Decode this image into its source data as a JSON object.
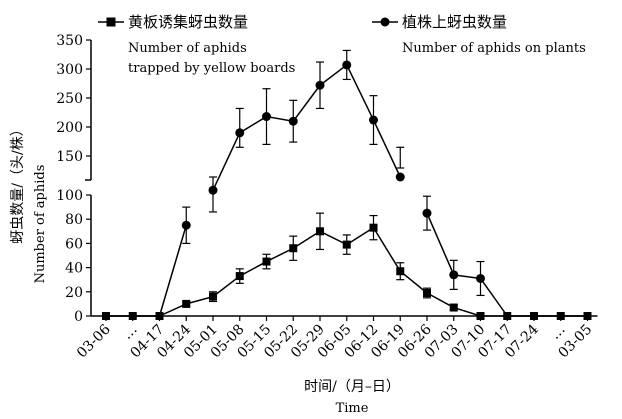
{
  "chart_data": {
    "type": "line",
    "categories": [
      "03-06",
      "…",
      "04-17",
      "04-24",
      "05-01",
      "05-08",
      "05-15",
      "05-22",
      "05-29",
      "06-05",
      "06-12",
      "06-19",
      "06-26",
      "07-03",
      "07-10",
      "07-17",
      "07-24",
      "…",
      "03-05"
    ],
    "series": [
      {
        "name": "黄板诱集蚜虫数量",
        "name_en": "Number of aphids trapped by yellow boards",
        "marker": "square",
        "values": [
          0,
          0,
          0,
          10,
          16,
          33,
          45,
          56,
          70,
          59,
          73,
          37,
          19,
          7,
          0,
          0,
          0,
          0,
          0
        ],
        "errors": [
          0,
          0,
          0,
          2,
          4,
          6,
          6,
          10,
          15,
          8,
          10,
          7,
          4,
          2,
          0,
          0,
          0,
          0,
          0
        ]
      },
      {
        "name": "植株上蚜虫数量",
        "name_en": "Number of aphids on plants",
        "marker": "circle",
        "values": [
          0,
          0,
          0,
          75,
          108,
          190,
          218,
          210,
          272,
          307,
          212,
          130,
          85,
          34,
          31,
          0,
          0,
          0,
          0
        ],
        "errors": [
          0,
          0,
          0,
          15,
          22,
          42,
          48,
          36,
          40,
          25,
          42,
          15,
          14,
          12,
          14,
          0,
          0,
          0,
          0
        ]
      }
    ],
    "ylabel_cn": "蚜虫数量/（头/株）",
    "ylabel_en": "Number of aphids",
    "xlabel_cn": "时间/（月–日）",
    "xlabel_en": "Time",
    "y_ticks_upper": [
      150,
      200,
      250,
      300,
      350
    ],
    "y_ticks_lower": [
      0,
      20,
      40,
      60,
      80,
      100
    ],
    "ylim": [
      0,
      350
    ],
    "axis_break": [
      100,
      125
    ],
    "grid": false,
    "legend_position": "top"
  }
}
